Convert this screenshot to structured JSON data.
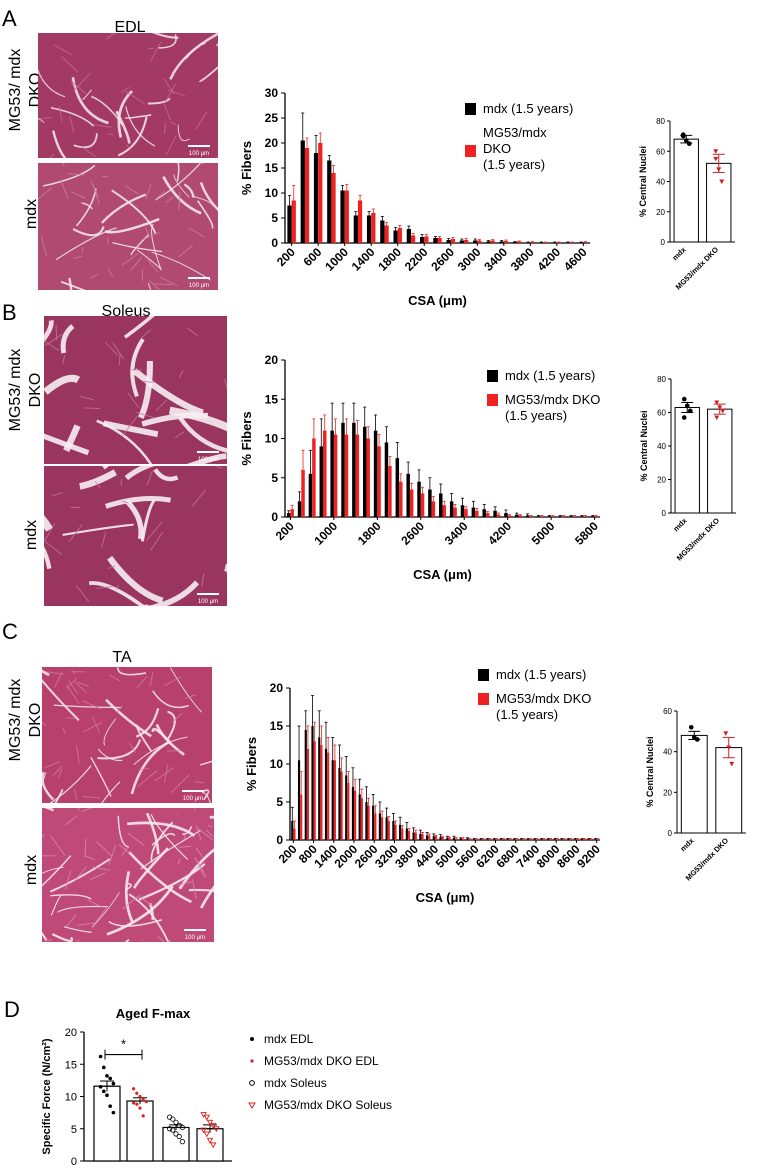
{
  "figure": {
    "panels": [
      {
        "letter": "A",
        "tissue": "EDL",
        "row_labels": [
          "MG53/ mdx DKO",
          "mdx"
        ],
        "scalebars": [
          "100 μm",
          "100 μm"
        ],
        "histo_colors": [
          [
            "#a33a63",
            "#c76a95",
            "#f1e1ea"
          ],
          [
            "#b04a70",
            "#cf7fa2",
            "#f3e6ee"
          ]
        ]
      },
      {
        "letter": "B",
        "tissue": "Soleus",
        "row_labels": [
          "MG53/ mdx DKO",
          "mdx"
        ],
        "scalebars": [
          "100 μm",
          "100 μm"
        ],
        "histo_colors": [
          [
            "#9a3560",
            "#c4769a",
            "#f6eef3"
          ],
          [
            "#9a3560",
            "#c4769a",
            "#f6eef3"
          ]
        ]
      },
      {
        "letter": "C",
        "tissue": "TA",
        "row_labels": [
          "MG53/ mdx DKO",
          "mdx"
        ],
        "scalebars": [
          "100 μm",
          "100 μm"
        ],
        "histo_colors": [
          [
            "#b8406c",
            "#d27b9c",
            "#f4e4ec"
          ],
          [
            "#c04a77",
            "#d98aab",
            "#f6e8ef"
          ]
        ]
      },
      {
        "letter": "D"
      }
    ]
  },
  "chart_data": [
    {
      "type": "bar",
      "panel": "A",
      "xlabel": "CSA (μm)",
      "ylabel": "% Fibers",
      "ylim": [
        0,
        30
      ],
      "yticks": [
        "0",
        "5",
        "10",
        "15",
        "20",
        "25",
        "30"
      ],
      "xticks": [
        "200",
        "600",
        "1000",
        "1400",
        "1800",
        "2200",
        "2600",
        "3000",
        "3400",
        "3800",
        "4200",
        "4600"
      ],
      "categories": [
        200,
        400,
        600,
        800,
        1000,
        1200,
        1400,
        1600,
        1800,
        2000,
        2200,
        2400,
        2600,
        2800,
        3000,
        3200,
        3400,
        3600,
        3800,
        4000,
        4200,
        4400,
        4600
      ],
      "legend": [
        "mdx (1.5 years)",
        "MG53/mdx\nDKO\n(1.5 years)"
      ],
      "series": [
        {
          "name": "mdx (1.5 years)",
          "color": "#000000",
          "values": [
            7.5,
            20.5,
            18,
            16.5,
            10.5,
            5.5,
            5.5,
            4.5,
            2.5,
            2.8,
            1.2,
            1.0,
            0.6,
            0.5,
            0.5,
            0.3,
            0.3,
            0.2,
            0.1,
            0.1,
            0.1,
            0.1,
            0.1
          ],
          "errors": [
            2,
            5.5,
            3.5,
            1,
            1,
            0.8,
            0.8,
            0.8,
            0.6,
            0.6,
            0.5,
            0.3,
            0.3,
            0.3,
            0.3,
            0.2,
            0.2,
            0.1,
            0.1,
            0.1,
            0.1,
            0.1,
            0.1
          ]
        },
        {
          "name": "MG53/mdx DKO (1.5 years)",
          "color": "#ee2222",
          "values": [
            8.5,
            19,
            20,
            14,
            10.5,
            8.5,
            6,
            3.5,
            3,
            1.5,
            1.3,
            1.0,
            0.8,
            0.6,
            0.5,
            0.5,
            0.4,
            0.3,
            0.2,
            0.1,
            0.1,
            0.1,
            0.2
          ],
          "errors": [
            3,
            2,
            2,
            1.5,
            1.2,
            1,
            0.8,
            0.6,
            0.5,
            0.4,
            0.4,
            0.3,
            0.3,
            0.3,
            0.2,
            0.2,
            0.2,
            0.1,
            0.1,
            0.1,
            0.1,
            0.1,
            0.1
          ]
        }
      ]
    },
    {
      "type": "bar",
      "panel": "B",
      "xlabel": "CSA (μm)",
      "ylabel": "% Fibers",
      "ylim": [
        0,
        20
      ],
      "yticks": [
        "0",
        "5",
        "10",
        "15",
        "20"
      ],
      "xticks": [
        "200",
        "1000",
        "1800",
        "2600",
        "3400",
        "4200",
        "5000",
        "5800"
      ],
      "categories": [
        200,
        400,
        600,
        800,
        1000,
        1200,
        1400,
        1600,
        1800,
        2000,
        2200,
        2400,
        2600,
        2800,
        3000,
        3200,
        3400,
        3600,
        3800,
        4000,
        4200,
        4400,
        4600,
        4800,
        5000,
        5200,
        5400,
        5600,
        5800
      ],
      "legend": [
        "mdx (1.5 years)",
        "MG53/mdx DKO\n(1.5 years)"
      ],
      "series": [
        {
          "name": "mdx (1.5 years)",
          "color": "#000000",
          "values": [
            0.5,
            2.0,
            5.5,
            9.0,
            11.0,
            12.0,
            12.0,
            11.5,
            11.0,
            9.5,
            7.5,
            5.5,
            4.5,
            3.5,
            3.0,
            2.0,
            1.5,
            1.2,
            1.0,
            0.8,
            0.5,
            0.3,
            0.2,
            0.1,
            0.1,
            0.1,
            0.1,
            0.1,
            0.1
          ],
          "errors": [
            0.3,
            1.2,
            3.0,
            3.5,
            3.5,
            2.5,
            2.5,
            2.5,
            2.0,
            2.0,
            2.0,
            1.5,
            1.5,
            1.5,
            1.2,
            1.0,
            0.9,
            0.8,
            0.6,
            0.5,
            0.4,
            0.2,
            0.2,
            0.1,
            0.1,
            0.1,
            0.1,
            0.1,
            0.1
          ]
        },
        {
          "name": "MG53/mdx DKO (1.5 years)",
          "color": "#ee2222",
          "values": [
            1.0,
            6.0,
            10.0,
            11.0,
            10.5,
            10.5,
            10.5,
            10.0,
            9.0,
            6.5,
            4.5,
            3.5,
            3.0,
            2.0,
            1.5,
            1.2,
            1.0,
            0.8,
            0.5,
            0.3,
            0.2,
            0.2,
            0.1,
            0.1,
            0.1,
            0.1,
            0.1,
            0.1,
            0.1
          ],
          "errors": [
            0.5,
            2.5,
            2.5,
            2.0,
            2.0,
            2.0,
            1.8,
            1.5,
            1.5,
            1.2,
            1.0,
            0.8,
            0.8,
            0.6,
            0.5,
            0.4,
            0.3,
            0.3,
            0.2,
            0.2,
            0.1,
            0.1,
            0.1,
            0.1,
            0.1,
            0.1,
            0.1,
            0.1,
            0.1
          ]
        }
      ]
    },
    {
      "type": "bar",
      "panel": "C",
      "xlabel": "CSA (μm)",
      "ylabel": "% Fibers",
      "ylim": [
        0,
        20
      ],
      "yticks": [
        "0",
        "5",
        "10",
        "15",
        "20"
      ],
      "xticks": [
        "200",
        "800",
        "1400",
        "2000",
        "2600",
        "3200",
        "3800",
        "4400",
        "5000",
        "5600",
        "6200",
        "6800",
        "7400",
        "8000",
        "8600",
        "9200"
      ],
      "categories": [
        200,
        400,
        600,
        800,
        1000,
        1200,
        1400,
        1600,
        1800,
        2000,
        2200,
        2400,
        2600,
        2800,
        3000,
        3200,
        3400,
        3600,
        3800,
        4000,
        4200,
        4400,
        4600,
        4800,
        5000,
        5200,
        5400,
        5600,
        5800,
        6000,
        6200,
        6400,
        6600,
        6800,
        7000,
        7200,
        7400,
        7600,
        7800,
        8000,
        8200,
        8400,
        8600,
        8800,
        9000,
        9200
      ],
      "legend": [
        "mdx (1.5 years)",
        "MG53/mdx DKO\n(1.5 years)"
      ],
      "series": [
        {
          "name": "mdx (1.5 years)",
          "color": "#000000",
          "values": [
            2.5,
            10.5,
            14.5,
            15.0,
            13.5,
            12.0,
            10.5,
            9.5,
            8.5,
            7.0,
            6.0,
            5.0,
            4.5,
            3.5,
            3.0,
            2.5,
            2.0,
            1.5,
            1.0,
            0.8,
            0.6,
            0.5,
            0.4,
            0.3,
            0.3,
            0.2,
            0.2,
            0.1,
            0.1,
            0.1,
            0.1,
            0.1,
            0.1,
            0.1,
            0.1,
            0.1,
            0.1,
            0.1,
            0.1,
            0.1,
            0.1,
            0.1,
            0.1,
            0.1,
            0.1,
            0.1
          ],
          "errors": [
            1.8,
            4.5,
            2.5,
            4.0,
            3.5,
            3.5,
            3.0,
            3.0,
            2.5,
            2.5,
            2.0,
            2.0,
            1.5,
            1.5,
            1.2,
            1.0,
            1.0,
            0.8,
            0.6,
            0.5,
            0.4,
            0.3,
            0.3,
            0.2,
            0.2,
            0.1,
            0.1,
            0.1,
            0.1,
            0.1,
            0.1,
            0.1,
            0.1,
            0.1,
            0.1,
            0.1,
            0.1,
            0.1,
            0.1,
            0.1,
            0.1,
            0.1,
            0.1,
            0.1,
            0.1,
            0.1
          ]
        },
        {
          "name": "MG53/mdx DKO (1.5 years)",
          "color": "#ee2222",
          "values": [
            1.5,
            6.0,
            12.0,
            13.0,
            12.5,
            11.5,
            10.5,
            9.0,
            7.5,
            6.5,
            5.5,
            4.5,
            3.5,
            3.0,
            2.5,
            2.0,
            1.5,
            1.2,
            1.0,
            0.8,
            0.6,
            0.5,
            0.4,
            0.3,
            0.2,
            0.2,
            0.1,
            0.1,
            0.1,
            0.1,
            0.1,
            0.1,
            0.1,
            0.1,
            0.1,
            0.1,
            0.1,
            0.1,
            0.1,
            0.1,
            0.1,
            0.1,
            0.1,
            0.1,
            0.1,
            0.1
          ],
          "errors": [
            1.0,
            3.0,
            3.0,
            2.5,
            2.5,
            2.0,
            2.0,
            1.8,
            1.5,
            1.5,
            1.2,
            1.0,
            1.0,
            0.8,
            0.6,
            0.5,
            0.4,
            0.3,
            0.3,
            0.2,
            0.2,
            0.1,
            0.1,
            0.1,
            0.1,
            0.1,
            0.1,
            0.1,
            0.1,
            0.1,
            0.1,
            0.1,
            0.1,
            0.1,
            0.1,
            0.1,
            0.1,
            0.1,
            0.1,
            0.1,
            0.1,
            0.1,
            0.1,
            0.1,
            0.1,
            0.1
          ]
        }
      ]
    },
    {
      "type": "bar",
      "panel": "A-inset",
      "ylabel": "% Central Nuclei",
      "ylim": [
        0,
        80
      ],
      "yticks": [
        "0",
        "20",
        "40",
        "60",
        "80"
      ],
      "categories": [
        "mdx",
        "MG53/mdx DKO"
      ],
      "values": [
        68,
        52
      ],
      "errors": [
        2.5,
        6
      ],
      "points": [
        [
          71,
          67,
          65,
          70
        ],
        [
          60,
          48,
          40,
          55
        ]
      ],
      "point_colors": [
        "#000000",
        "#cc2222"
      ]
    },
    {
      "type": "bar",
      "panel": "B-inset",
      "ylabel": "% Central Nuclei",
      "ylim": [
        0,
        80
      ],
      "yticks": [
        "0",
        "20",
        "40",
        "60",
        "80"
      ],
      "categories": [
        "mdx",
        "MG53/mdx DKO"
      ],
      "values": [
        63,
        62
      ],
      "errors": [
        3,
        3
      ],
      "points": [
        [
          68,
          64,
          61,
          57
        ],
        [
          66,
          63,
          61,
          57
        ]
      ],
      "point_colors": [
        "#000000",
        "#cc2222"
      ]
    },
    {
      "type": "bar",
      "panel": "C-inset",
      "ylabel": "% Central Nuclei",
      "ylim": [
        0,
        60
      ],
      "yticks": [
        "0",
        "20",
        "40",
        "60"
      ],
      "categories": [
        "mdx",
        "MG53/mdx DKO"
      ],
      "values": [
        48,
        42
      ],
      "errors": [
        2,
        5
      ],
      "points": [
        [
          52,
          47,
          46
        ],
        [
          49,
          42,
          34
        ]
      ],
      "point_colors": [
        "#000000",
        "#cc2222"
      ]
    },
    {
      "type": "bar",
      "panel": "D",
      "title": "Aged F-max",
      "ylabel": "Specific Force (N/cm²)",
      "ylim": [
        0,
        20
      ],
      "yticks": [
        "0",
        "5",
        "10",
        "15",
        "20"
      ],
      "categories": [
        "mdx EDL",
        "MG53/mdx DKO EDL",
        "mdx Soleus",
        "MG53/mdx DKO Soleus"
      ],
      "legend": [
        "mdx EDL",
        "MG53/mdx DKO EDL",
        "mdx Soleus",
        "MG53/mdx DKO Soleus"
      ],
      "values": [
        11.6,
        9.3,
        5.2,
        5.0
      ],
      "errors": [
        0.8,
        0.5,
        0.4,
        0.6
      ],
      "points": [
        [
          16.2,
          14.5,
          13.2,
          12.8,
          12.0,
          11.5,
          10.8,
          10.2,
          8.5,
          7.5
        ],
        [
          11.2,
          10.5,
          10.0,
          9.5,
          9.2,
          9.0,
          8.8,
          8.2,
          7.0
        ],
        [
          6.8,
          6.5,
          6.0,
          5.5,
          5.2,
          5.0,
          4.8,
          4.2,
          3.8,
          3.0
        ],
        [
          7.2,
          6.8,
          6.0,
          5.5,
          5.0,
          4.8,
          4.2,
          3.2,
          2.5
        ]
      ],
      "significance": "*"
    }
  ]
}
